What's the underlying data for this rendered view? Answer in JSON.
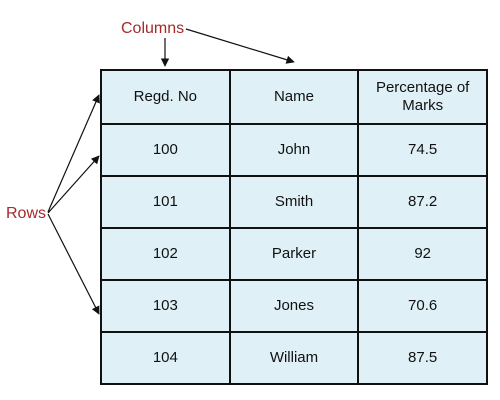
{
  "annotations": {
    "columns_label": "Columns",
    "rows_label": "Rows"
  },
  "table": {
    "headers": [
      "Regd. No",
      "Name",
      "Percentage of Marks"
    ],
    "rows": [
      [
        "100",
        "John",
        "74.5"
      ],
      [
        "101",
        "Smith",
        "87.2"
      ],
      [
        "102",
        "Parker",
        "92"
      ],
      [
        "103",
        "Jones",
        "70.6"
      ],
      [
        "104",
        "William",
        "87.5"
      ]
    ]
  },
  "colors": {
    "annotation": "#a52a2a",
    "cell_fill": "#dff1f7",
    "border": "#111111"
  }
}
